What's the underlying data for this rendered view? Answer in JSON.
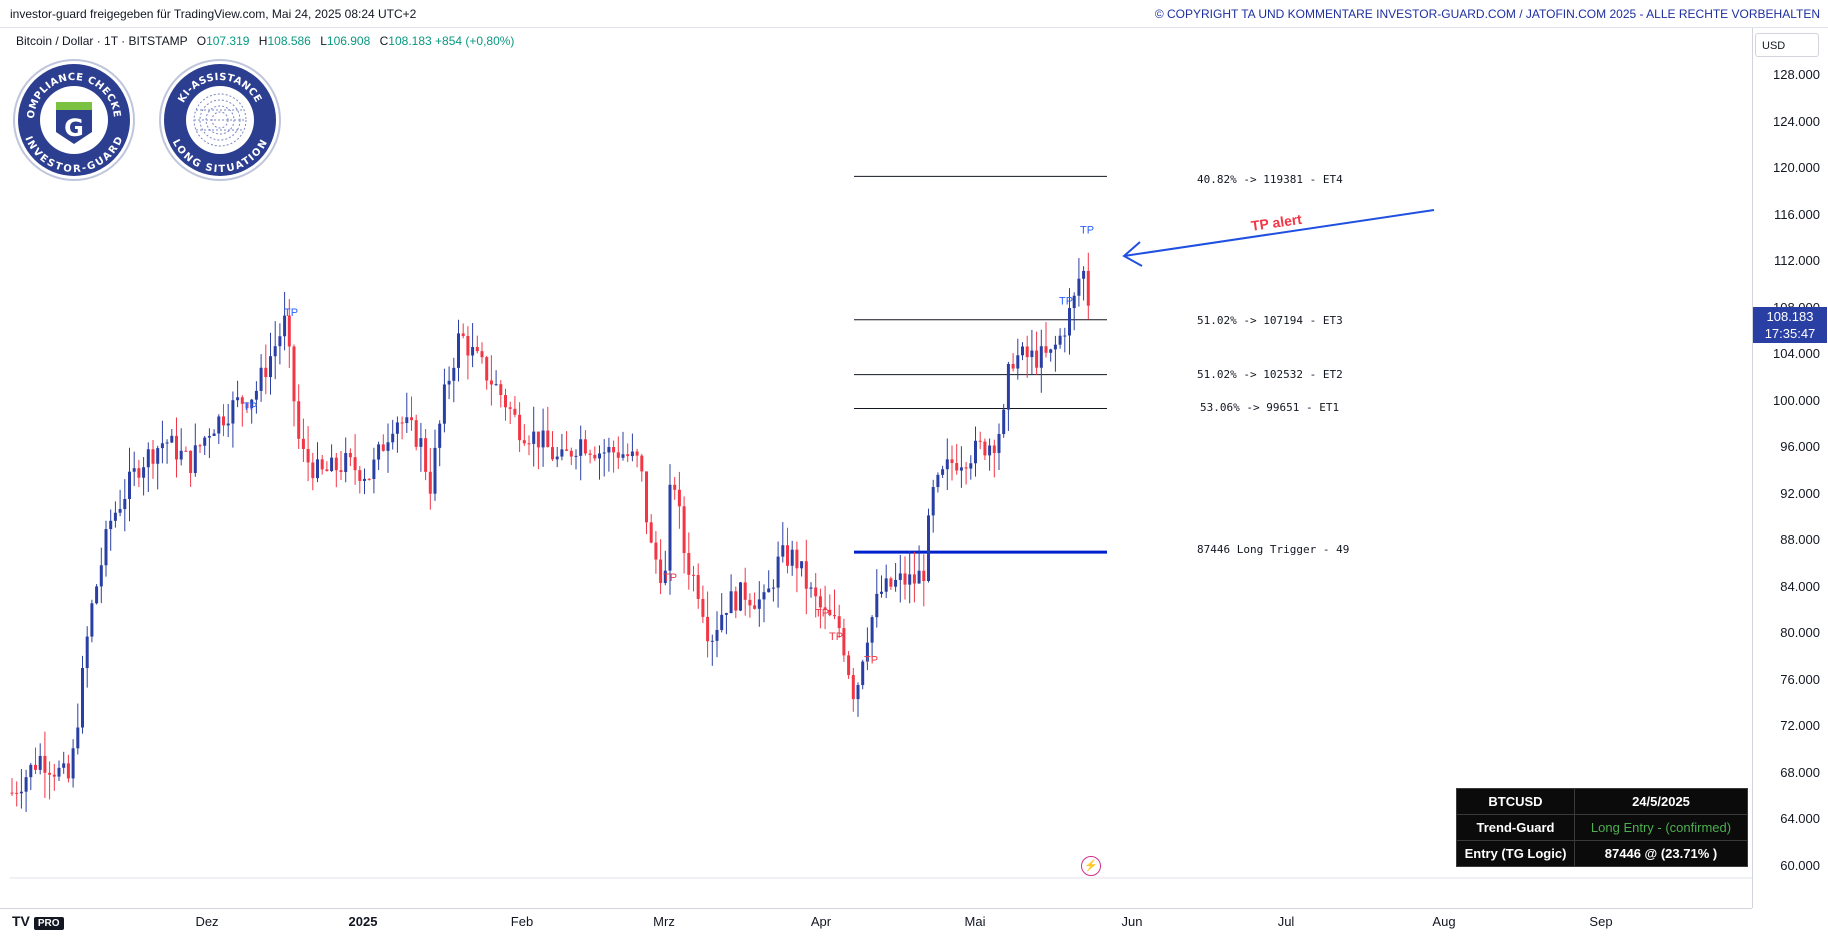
{
  "header": {
    "left_text": "investor-guard freigegeben für TradingView.com, Mai 24, 2025 08:24 UTC+2",
    "right_text": "© COPYRIGHT TA UND KOMMENTARE INVESTOR-GUARD.COM / JATOFIN.COM 2025 - ALLE RECHTE VORBEHALTEN"
  },
  "legend": {
    "symbol": "Bitcoin / Dollar · 1T · BITSTAMP",
    "open_label": "O",
    "open": "107.319",
    "high_label": "H",
    "high": "108.586",
    "low_label": "L",
    "low": "106.908",
    "close_label": "C",
    "close": "108.183",
    "change": "+854 (+0,80%)"
  },
  "badges": {
    "compliance_top": "COMPLIANCE CHECKED",
    "compliance_bottom": "INVESTOR-GUARD",
    "compliance_letter": "G",
    "ki_top": "KI-ASSISTANCE",
    "ki_bottom": "LONG SITUATION"
  },
  "price_axis": {
    "currency": "USD",
    "ticks": [
      "128.000",
      "124.000",
      "120.000",
      "116.000",
      "112.000",
      "108.000",
      "104.000",
      "100.000",
      "96.000",
      "92.000",
      "88.000",
      "84.000",
      "80.000",
      "76.000",
      "72.000",
      "68.000",
      "64.000",
      "60.000"
    ],
    "last_price": "108.183",
    "countdown": "17:35:47"
  },
  "time_axis": {
    "labels": [
      "Dez",
      "2025",
      "Feb",
      "Mrz",
      "Apr",
      "Mai",
      "Jun",
      "Jul",
      "Aug",
      "Sep"
    ]
  },
  "levels": [
    {
      "label": "40.82% -> 119381 - ET4",
      "price": 119381
    },
    {
      "label": "51.02% -> 107194 - ET3",
      "price": 107194
    },
    {
      "label": "51.02% -> 102532 - ET2",
      "price": 102532
    },
    {
      "label": "53.06% -> 99651 - ET1",
      "price": 99651
    },
    {
      "label": "87446  Long Trigger - 49",
      "price": 87446
    }
  ],
  "annotation": {
    "tp_alert": "TP alert",
    "tp_marker": "TP"
  },
  "info_table": {
    "rows": [
      {
        "key": "BTCUSD",
        "value": "24/5/2025"
      },
      {
        "key": "Trend-Guard",
        "value": "Long Entry - (confirmed)"
      },
      {
        "key": "Entry (TG Logic)",
        "value": "87446 @ (23.71% )"
      }
    ]
  },
  "branding": {
    "logo": "TV",
    "pro": "PRO"
  },
  "colors": {
    "up": "#2a3fa3",
    "down": "#f23645",
    "level_line": "#131722",
    "trigger_line": "#0022cc",
    "tp_up": "#2962ff",
    "tp_down": "#f23645"
  }
}
